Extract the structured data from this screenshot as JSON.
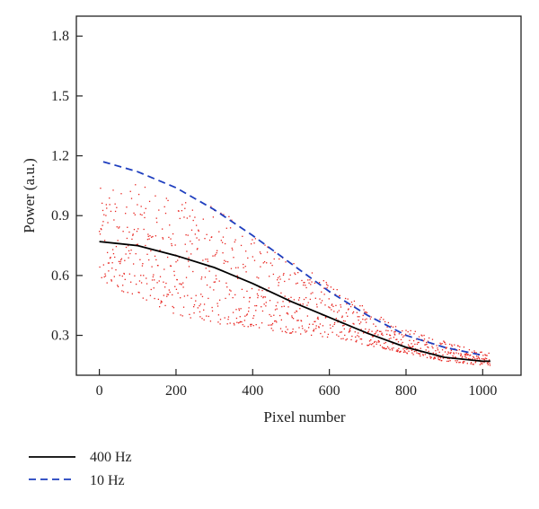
{
  "chart_data": {
    "type": "line",
    "xlabel": "Pixel number",
    "ylabel": "Power (a.u.)",
    "xlim": [
      -60,
      1100
    ],
    "ylim": [
      0.1,
      1.9
    ],
    "x_ticks": [
      0,
      200,
      400,
      600,
      800,
      1000
    ],
    "y_ticks": [
      0.3,
      0.6,
      0.9,
      1.2,
      1.5,
      1.8
    ],
    "y_tick_labels": [
      "0.3",
      "0.6",
      "0.9",
      "1.2",
      "1.5",
      "1.8"
    ],
    "grid": false,
    "legend_position": "below plot, left",
    "series": [
      {
        "name": "400 Hz",
        "style": "solid",
        "color": "#000000",
        "x": [
          0,
          100,
          200,
          300,
          400,
          500,
          600,
          700,
          800,
          900,
          1000,
          1020
        ],
        "y": [
          0.77,
          0.75,
          0.7,
          0.64,
          0.56,
          0.47,
          0.39,
          0.31,
          0.24,
          0.19,
          0.17,
          0.17
        ]
      },
      {
        "name": "10 Hz",
        "style": "dashed",
        "color": "#1f3fbf",
        "x": [
          10,
          100,
          200,
          300,
          400,
          500,
          600,
          700,
          800,
          900,
          1000
        ],
        "y": [
          1.17,
          1.12,
          1.04,
          0.93,
          0.8,
          0.66,
          0.52,
          0.4,
          0.3,
          0.24,
          0.2
        ]
      },
      {
        "name": "",
        "style": "scatter",
        "color": "#e8231e",
        "envelope_x": [
          0,
          100,
          200,
          300,
          400,
          500,
          600,
          700,
          800,
          900,
          1000
        ],
        "envelope_low": [
          0.55,
          0.5,
          0.4,
          0.36,
          0.34,
          0.31,
          0.29,
          0.25,
          0.21,
          0.17,
          0.15
        ],
        "envelope_high": [
          1.04,
          1.06,
          0.98,
          0.95,
          0.82,
          0.68,
          0.56,
          0.44,
          0.34,
          0.27,
          0.22
        ],
        "point_count": 1020
      }
    ]
  }
}
